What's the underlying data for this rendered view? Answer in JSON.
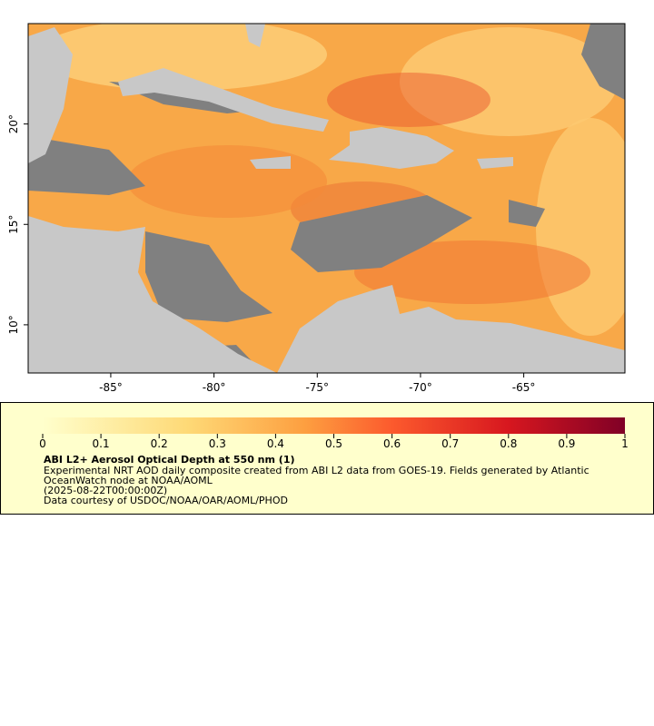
{
  "map": {
    "xlim": [
      -89,
      -60.1
    ],
    "ylim": [
      7.6,
      25
    ],
    "xticks": [
      {
        "value": -85,
        "label": "-85°"
      },
      {
        "value": -80,
        "label": "-80°"
      },
      {
        "value": -75,
        "label": "-75°"
      },
      {
        "value": -70,
        "label": "-70°"
      },
      {
        "value": -65,
        "label": "-65°"
      }
    ],
    "yticks": [
      {
        "value": 10,
        "label": "10°"
      },
      {
        "value": 15,
        "label": "15°"
      },
      {
        "value": 20,
        "label": "20°"
      }
    ]
  },
  "legend": {
    "range": [
      0,
      1
    ],
    "ticks": [
      0,
      0.1,
      0.2,
      0.3,
      0.4,
      0.5,
      0.6,
      0.7,
      0.8,
      0.9,
      1
    ],
    "title": "ABI L2+ Aerosol Optical Depth at 550 nm (1)",
    "lines": [
      "Experimental NRT AOD daily composite created from ABI L2 data from GOES-19. Fields generated by Atlantic",
      "OceanWatch node at NOAA/AOML",
      "(2025-08-22T00:00:00Z)",
      "Data courtesy of USDOC/NOAA/OAR/AOML/PHOD"
    ]
  }
}
